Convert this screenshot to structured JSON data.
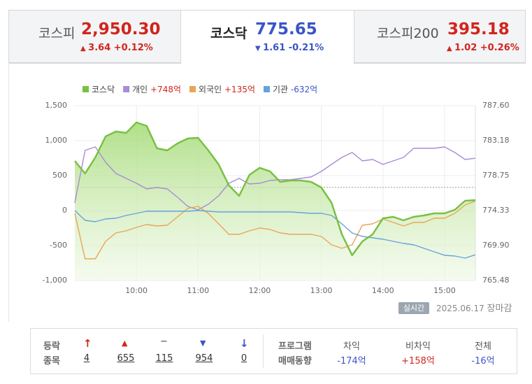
{
  "tabs": [
    {
      "name": "코스피",
      "value": "2,950.30",
      "change": "3.64",
      "rate": "+0.12%",
      "direction": "up"
    },
    {
      "name": "코스닥",
      "value": "775.65",
      "change": "1.61",
      "rate": "-0.21%",
      "direction": "down"
    },
    {
      "name": "코스피200",
      "value": "395.18",
      "change": "1.02",
      "rate": "+0.26%",
      "direction": "up"
    }
  ],
  "chart_data": {
    "type": "line",
    "x": [
      "09:00",
      "09:10",
      "09:20",
      "09:30",
      "09:40",
      "09:50",
      "10:00",
      "10:10",
      "10:20",
      "10:30",
      "10:40",
      "10:50",
      "11:00",
      "11:10",
      "11:20",
      "11:30",
      "11:40",
      "11:50",
      "12:00",
      "12:10",
      "12:20",
      "12:30",
      "12:40",
      "12:50",
      "13:00",
      "13:10",
      "13:20",
      "13:30",
      "13:40",
      "13:50",
      "14:00",
      "14:10",
      "14:20",
      "14:30",
      "14:40",
      "14:50",
      "15:00",
      "15:10",
      "15:20",
      "15:30"
    ],
    "xlim": [
      "09:00",
      "15:30"
    ],
    "xticks": [
      "10:00",
      "11:00",
      "12:00",
      "13:00",
      "14:00",
      "15:00"
    ],
    "ylim": [
      -1000,
      1500
    ],
    "yticks": [
      {
        "value": -1000,
        "label": "-1,000"
      },
      -500,
      0,
      500,
      {
        "value": 1000,
        "label": "1,000"
      },
      {
        "value": 1500,
        "label": "1,500"
      }
    ],
    "y2lim": [
      765.48,
      787.6
    ],
    "y2ticks": [
      765.48,
      {
        "value": 769.9,
        "label": "769.90"
      },
      774.33,
      778.75,
      783.18,
      {
        "value": 787.6,
        "label": "787.60"
      }
    ],
    "baseline": 777.26,
    "grid": true,
    "series": [
      {
        "name": "코스닥",
        "color": "#79c142",
        "axis": "y2",
        "fill": true,
        "values": [
          780.61,
          779.02,
          781.05,
          783.71,
          784.33,
          784.15,
          785.48,
          785.03,
          782.2,
          781.94,
          782.82,
          783.44,
          783.53,
          781.94,
          780.17,
          777.51,
          776.19,
          778.84,
          779.73,
          779.28,
          777.96,
          778.13,
          778.13,
          777.96,
          777.25,
          775.3,
          771.32,
          768.67,
          770.43,
          771.32,
          773.35,
          773.53,
          773.09,
          773.53,
          773.71,
          773.97,
          773.97,
          774.42,
          775.57,
          775.65
        ]
      },
      {
        "name": "개인",
        "total": "+748억",
        "color": "#a98bd6",
        "values": [
          110,
          860,
          910,
          690,
          530,
          460,
          390,
          310,
          330,
          310,
          190,
          60,
          10,
          90,
          210,
          390,
          460,
          380,
          390,
          430,
          440,
          440,
          460,
          480,
          560,
          660,
          760,
          830,
          710,
          730,
          660,
          710,
          760,
          890,
          890,
          890,
          910,
          830,
          730,
          748
        ]
      },
      {
        "name": "외국인",
        "total": "+135억",
        "color": "#e8a655",
        "values": [
          -40,
          -690,
          -690,
          -440,
          -320,
          -290,
          -240,
          -200,
          -220,
          -210,
          -90,
          30,
          60,
          -40,
          -190,
          -340,
          -340,
          -290,
          -250,
          -270,
          -320,
          -340,
          -340,
          -340,
          -370,
          -490,
          -540,
          -490,
          -210,
          -190,
          -120,
          -170,
          -220,
          -170,
          -170,
          -110,
          -110,
          -40,
          80,
          135
        ]
      },
      {
        "name": "기관",
        "total": "-632억",
        "color": "#67a2dc",
        "values": [
          0,
          -140,
          -160,
          -120,
          -110,
          -70,
          -40,
          -10,
          -10,
          -10,
          -10,
          -10,
          0,
          -10,
          -20,
          -20,
          -20,
          -20,
          -20,
          -20,
          -20,
          -20,
          -30,
          -40,
          -40,
          -70,
          -190,
          -320,
          -370,
          -390,
          -410,
          -440,
          -470,
          -490,
          -540,
          -590,
          -640,
          -650,
          -680,
          -632
        ]
      }
    ]
  },
  "status": {
    "badge": "실시간",
    "date": "2025.06.17",
    "state": "장마감"
  },
  "stats": {
    "label1": "등락",
    "label2": "종목",
    "counts": [
      {
        "value": "4",
        "kind": "upper"
      },
      {
        "value": "655",
        "kind": "up"
      },
      {
        "value": "115",
        "kind": "flat"
      },
      {
        "value": "954",
        "kind": "down"
      },
      {
        "value": "0",
        "kind": "lower"
      }
    ],
    "program1": "프로그램",
    "program2": "매매동향",
    "program": [
      {
        "name": "차익",
        "value": "-174억"
      },
      {
        "name": "비차익",
        "value": "+158억"
      },
      {
        "name": "전체",
        "value": "-16억"
      }
    ]
  }
}
